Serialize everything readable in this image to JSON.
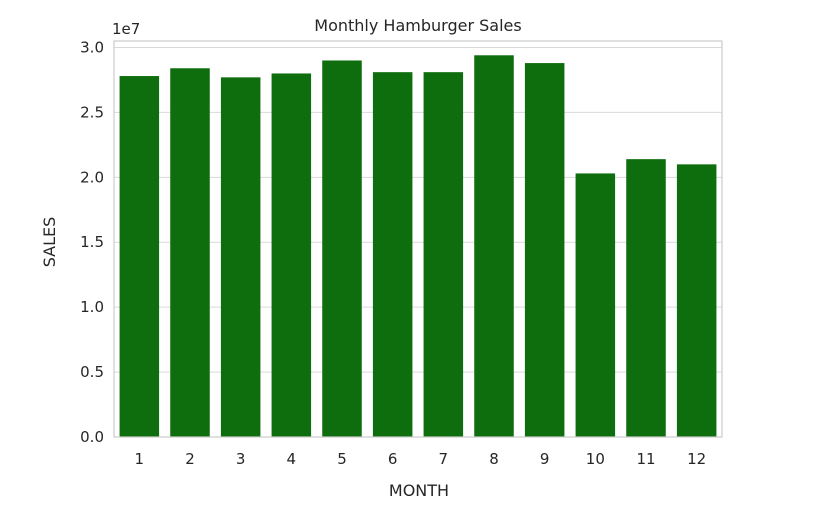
{
  "chart_data": {
    "type": "bar",
    "title": "Monthly Hamburger Sales",
    "xlabel": "MONTH",
    "ylabel": "SALES",
    "offset_label": "1e7",
    "categories": [
      "1",
      "2",
      "3",
      "4",
      "5",
      "6",
      "7",
      "8",
      "9",
      "10",
      "11",
      "12"
    ],
    "values": [
      2.78,
      2.84,
      2.77,
      2.8,
      2.9,
      2.81,
      2.81,
      2.94,
      2.88,
      2.03,
      2.14,
      2.1
    ],
    "value_unit_multiplier": "1e7",
    "ylim": [
      0,
      3.05
    ],
    "yticks": [
      "0.0",
      "0.5",
      "1.0",
      "1.5",
      "2.0",
      "2.5",
      "3.0"
    ],
    "grid": "horizontal",
    "bar_color": "#0e6e0e",
    "grid_color": "#d9d9d9",
    "spine_color": "#cccccc"
  }
}
